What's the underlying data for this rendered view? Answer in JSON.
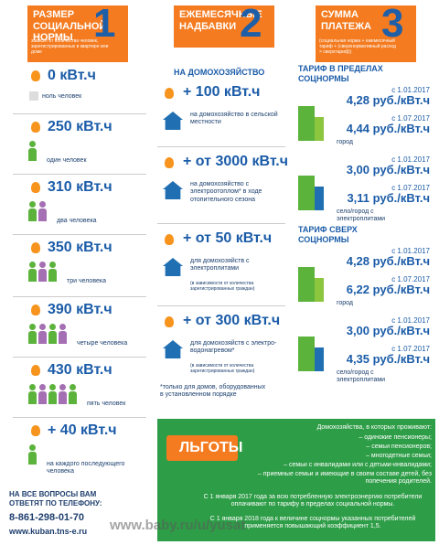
{
  "columns": [
    {
      "number": "1",
      "title": "Размер социальной нормы",
      "subtitle": "зависит от количества человек, зарегистрированных в квартире или доме",
      "rows": [
        {
          "value": "0 кВт.ч",
          "label": "ноль человек"
        },
        {
          "value": "250 кВт.ч",
          "label": "один человек"
        },
        {
          "value": "310 кВт.ч",
          "label": "два человека"
        },
        {
          "value": "350 кВт.ч",
          "label": "три человека"
        },
        {
          "value": "390 кВт.ч",
          "label": "четыре человека"
        },
        {
          "value": "430 кВт.ч",
          "label": "пять человек"
        },
        {
          "value": "+ 40 кВт.ч",
          "label": "на каждого последующего человека"
        }
      ],
      "contact": {
        "question": "НА ВСЕ ВОПРОСЫ ВАМ ОТВЕТЯТ ПО ТЕЛЕФОНУ:",
        "phone": "8-861-298-01-70",
        "site": "www.kuban.tns-e.ru"
      }
    },
    {
      "number": "2",
      "title": "Ежемесячные надбавки",
      "section": "НА ДОМОХОЗЯЙСТВО",
      "items": [
        {
          "value": "+ 100 кВт.ч",
          "label": "на домохозяйство в сельской местности"
        },
        {
          "value": "+ от 3000 кВт.ч",
          "label": "на домохозяйство с электроотоплом* в ходе отопительного сезона"
        },
        {
          "value": "+ от 50 кВт.ч",
          "label": "для домохозяйств с электроплитами",
          "note": "(в зависимости от количества зарегистрированных граждан)"
        },
        {
          "value": "+ от 300 кВт.ч",
          "label": "для домохозяйств с электро-водонагревом*",
          "note": "(в зависимости от количества зарегистрированных граждан)"
        }
      ],
      "footnote": "*только для домов, оборудованных в установленном порядке"
    },
    {
      "number": "3",
      "title": "Сумма платежа",
      "subtitle": "(социальная норма + ежемесячный тариф + (сверхнормативный расход × сверхтариф))",
      "tariffs": [
        {
          "heading": "ТАРИФ В ПРЕДЕЛАХ СОЦНОРМЫ",
          "groups": [
            {
              "area": "город",
              "rates": [
                {
                  "date": "с 1.01.2017",
                  "price": "4,28 руб./кВт.ч"
                },
                {
                  "date": "с 1.07.2017",
                  "price": "4,44 руб./кВт.ч"
                }
              ]
            },
            {
              "area": "село/город с электроплитами",
              "rates": [
                {
                  "date": "с 1.01.2017",
                  "price": "3,00 руб./кВт.ч"
                },
                {
                  "date": "с 1.07.2017",
                  "price": "3,11 руб./кВт.ч"
                }
              ]
            }
          ]
        },
        {
          "heading": "ТАРИФ СВЕРХ СОЦНОРМЫ",
          "groups": [
            {
              "area": "город",
              "rates": [
                {
                  "date": "с 1.01.2017",
                  "price": "4,28 руб./кВт.ч"
                },
                {
                  "date": "с 1.07.2017",
                  "price": "6,22 руб./кВт.ч"
                }
              ]
            },
            {
              "area": "село/город с электроплитами",
              "rates": [
                {
                  "date": "с 1.01.2017",
                  "price": "3,00 руб./кВт.ч"
                },
                {
                  "date": "с 1.07.2017",
                  "price": "4,35 руб./кВт.ч"
                }
              ]
            }
          ]
        }
      ]
    }
  ],
  "benefits": {
    "title": "ЛЬГОТЫ",
    "intro": "Домохозяйства, в которых проживают:",
    "list": [
      "– одинокие пенсионеры;",
      "– семьи пенсионеров;",
      "– многодетные семьи;",
      "– семьи с инвалидами или с детьми-инвалидами;",
      "– приемные семьи и имеющие в своем составе детей, без попечения родителей."
    ],
    "paragraphs": [
      "С 1 января 2017 года за всю потребленную электроэнергию потребители оплачивают по тарифу в пределах социальной нормы.",
      "С 1 января 2018 года к величине соцнормы указанных потребителей применяется повышающий коэффициент 1,5."
    ]
  },
  "watermark": "www.baby.ru/u/yusat"
}
